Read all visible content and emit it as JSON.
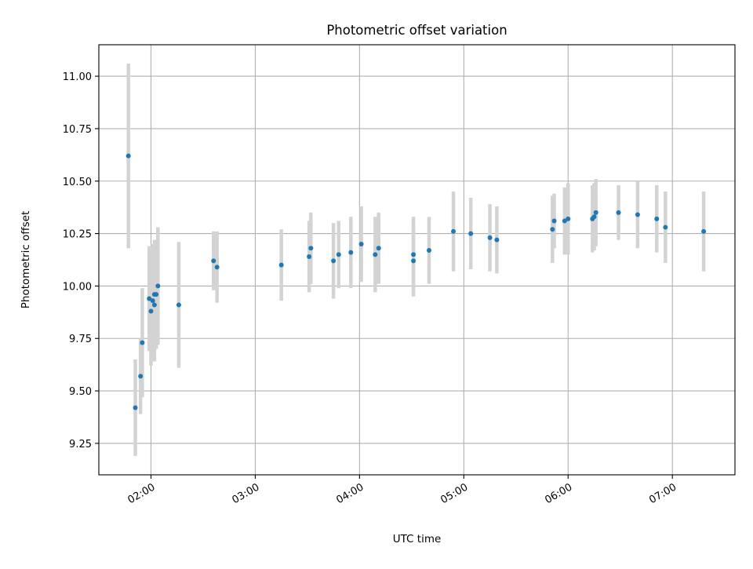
{
  "chart_data": {
    "type": "scatter",
    "title": "Photometric offset variation",
    "xlabel": "UTC time",
    "ylabel": "Photometric offset",
    "x_ticks": [
      "02:00",
      "03:00",
      "04:00",
      "05:00",
      "06:00",
      "07:00"
    ],
    "y_ticks": [
      "9.25",
      "9.50",
      "9.75",
      "10.00",
      "10.25",
      "10.50",
      "10.75",
      "11.00"
    ],
    "xlim": [
      "01:30",
      "07:36"
    ],
    "ylim": [
      9.1,
      11.15
    ],
    "grid": true,
    "legend": "none",
    "colors": {
      "marker": "#1f77b4",
      "errorbar": "#d3d3d3",
      "grid": "#b0b0b0"
    },
    "points": [
      {
        "t": "01:47",
        "y": 10.62,
        "err": 0.44
      },
      {
        "t": "01:51",
        "y": 9.42,
        "err": 0.23
      },
      {
        "t": "01:54",
        "y": 9.57,
        "err": 0.18
      },
      {
        "t": "01:55",
        "y": 9.73,
        "err": 0.26
      },
      {
        "t": "01:59",
        "y": 9.94,
        "err": 0.25
      },
      {
        "t": "02:00",
        "y": 9.88,
        "err": 0.26
      },
      {
        "t": "02:01",
        "y": 9.93,
        "err": 0.27
      },
      {
        "t": "02:02",
        "y": 9.91,
        "err": 0.27
      },
      {
        "t": "02:02",
        "y": 9.96,
        "err": 0.26
      },
      {
        "t": "02:03",
        "y": 9.96,
        "err": 0.26
      },
      {
        "t": "02:04",
        "y": 10.0,
        "err": 0.28
      },
      {
        "t": "02:16",
        "y": 9.91,
        "err": 0.3
      },
      {
        "t": "02:36",
        "y": 10.12,
        "err": 0.14
      },
      {
        "t": "02:38",
        "y": 10.09,
        "err": 0.17
      },
      {
        "t": "03:15",
        "y": 10.1,
        "err": 0.17
      },
      {
        "t": "03:31",
        "y": 10.14,
        "err": 0.17
      },
      {
        "t": "03:32",
        "y": 10.18,
        "err": 0.17
      },
      {
        "t": "03:45",
        "y": 10.12,
        "err": 0.18
      },
      {
        "t": "03:48",
        "y": 10.15,
        "err": 0.16
      },
      {
        "t": "03:55",
        "y": 10.16,
        "err": 0.17
      },
      {
        "t": "04:01",
        "y": 10.2,
        "err": 0.18
      },
      {
        "t": "04:09",
        "y": 10.15,
        "err": 0.18
      },
      {
        "t": "04:11",
        "y": 10.18,
        "err": 0.17
      },
      {
        "t": "04:31",
        "y": 10.12,
        "err": 0.17
      },
      {
        "t": "04:31",
        "y": 10.15,
        "err": 0.18
      },
      {
        "t": "04:40",
        "y": 10.17,
        "err": 0.16
      },
      {
        "t": "04:54",
        "y": 10.26,
        "err": 0.19
      },
      {
        "t": "05:04",
        "y": 10.25,
        "err": 0.17
      },
      {
        "t": "05:15",
        "y": 10.23,
        "err": 0.16
      },
      {
        "t": "05:19",
        "y": 10.22,
        "err": 0.16
      },
      {
        "t": "05:51",
        "y": 10.27,
        "err": 0.16
      },
      {
        "t": "05:52",
        "y": 10.31,
        "err": 0.13
      },
      {
        "t": "05:58",
        "y": 10.31,
        "err": 0.16
      },
      {
        "t": "06:00",
        "y": 10.32,
        "err": 0.17
      },
      {
        "t": "06:14",
        "y": 10.32,
        "err": 0.16
      },
      {
        "t": "06:15",
        "y": 10.33,
        "err": 0.16
      },
      {
        "t": "06:16",
        "y": 10.35,
        "err": 0.16
      },
      {
        "t": "06:29",
        "y": 10.35,
        "err": 0.13
      },
      {
        "t": "06:40",
        "y": 10.34,
        "err": 0.16
      },
      {
        "t": "06:51",
        "y": 10.32,
        "err": 0.16
      },
      {
        "t": "06:56",
        "y": 10.28,
        "err": 0.17
      },
      {
        "t": "07:18",
        "y": 10.26,
        "err": 0.19
      }
    ]
  }
}
